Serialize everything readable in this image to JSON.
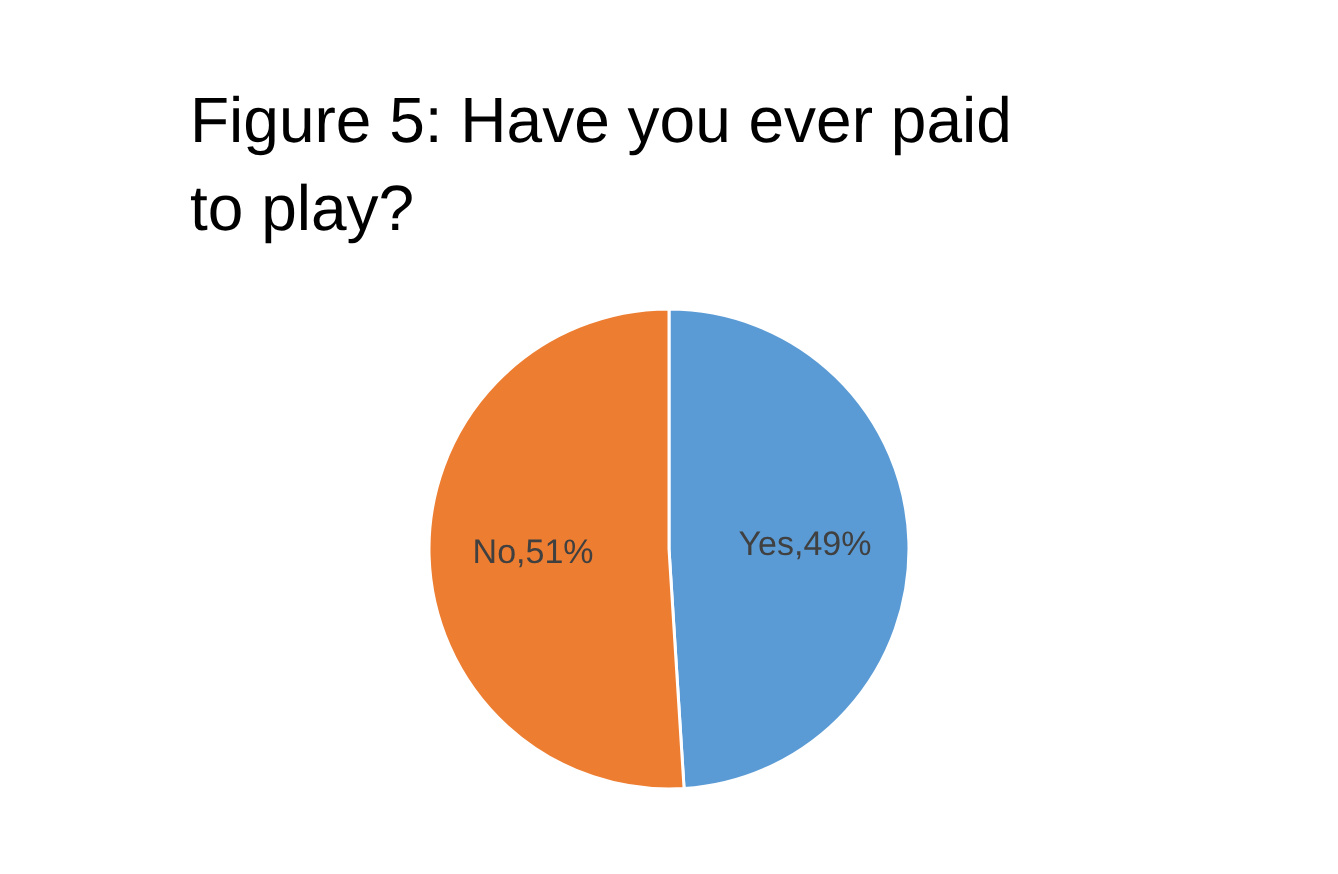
{
  "chart_data": {
    "type": "pie",
    "title": "Figure 5: Have you ever paid to play?",
    "categories": [
      "Yes",
      "No"
    ],
    "values": [
      49,
      51
    ],
    "colors": [
      "#5b9bd5",
      "#ed7d31"
    ],
    "value_labels": [
      "49%",
      "51%"
    ],
    "legend": false
  }
}
